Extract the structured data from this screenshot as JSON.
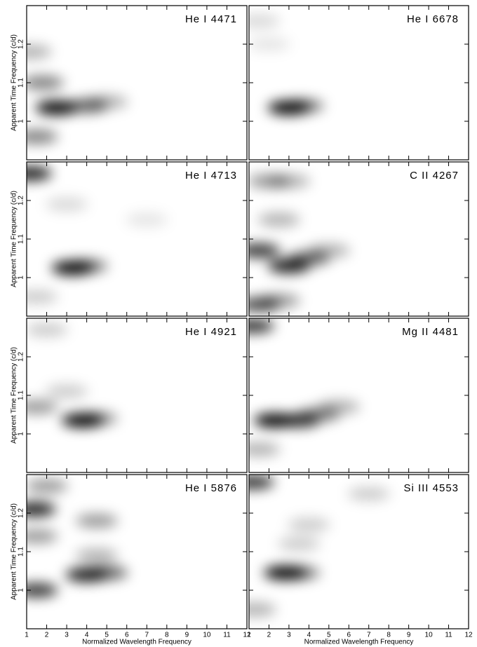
{
  "chart_data": [
    {
      "type": "heatmap",
      "title": "He I 4471",
      "ylabel": "Apparent Time Frequency (c/d)",
      "xlim": [
        1,
        12
      ],
      "ylim": [
        0.9,
        1.3
      ],
      "xticks": [
        1,
        2,
        3,
        4,
        5,
        6,
        7,
        8,
        9,
        10,
        11,
        12
      ],
      "yticks": [
        1,
        1.1,
        1.2
      ],
      "peaks": [
        {
          "x": 1.2,
          "y": 1.18,
          "value": 0.3
        },
        {
          "x": 1.8,
          "y": 1.1,
          "value": 0.5
        },
        {
          "x": 2.5,
          "y": 1.035,
          "value": 1
        },
        {
          "x": 4,
          "y": 1.04,
          "value": 0.6
        },
        {
          "x": 5,
          "y": 1.05,
          "value": 0.3
        },
        {
          "x": 1.5,
          "y": 0.96,
          "value": 0.5
        }
      ]
    },
    {
      "type": "heatmap",
      "title": "He I 6678",
      "xlim": [
        1,
        12
      ],
      "ylim": [
        0.9,
        1.3
      ],
      "xticks": [
        1,
        2,
        3,
        4,
        5,
        6,
        7,
        8,
        9,
        10,
        11,
        12
      ],
      "yticks": [
        1,
        1.1,
        1.2
      ],
      "peaks": [
        {
          "x": 3,
          "y": 1.035,
          "value": 1
        },
        {
          "x": 3.7,
          "y": 1.04,
          "value": 0.5
        },
        {
          "x": 1.5,
          "y": 1.26,
          "value": 0.15
        },
        {
          "x": 2,
          "y": 1.2,
          "value": 0.1
        }
      ]
    },
    {
      "type": "heatmap",
      "title": "He I 4713",
      "ylabel": "Apparent Time Frequency (c/d)",
      "xlim": [
        1,
        12
      ],
      "ylim": [
        0.9,
        1.3
      ],
      "xticks": [
        1,
        2,
        3,
        4,
        5,
        6,
        7,
        8,
        9,
        10,
        11,
        12
      ],
      "yticks": [
        1,
        1.1,
        1.2
      ],
      "peaks": [
        {
          "x": 1.2,
          "y": 1.27,
          "value": 0.9
        },
        {
          "x": 3.3,
          "y": 1.025,
          "value": 1
        },
        {
          "x": 4,
          "y": 1.03,
          "value": 0.5
        },
        {
          "x": 3,
          "y": 1.19,
          "value": 0.15
        },
        {
          "x": 7,
          "y": 1.15,
          "value": 0.1
        },
        {
          "x": 1.5,
          "y": 0.95,
          "value": 0.2
        }
      ]
    },
    {
      "type": "heatmap",
      "title": "C II 4267",
      "xlim": [
        1,
        12
      ],
      "ylim": [
        0.9,
        1.3
      ],
      "xticks": [
        1,
        2,
        3,
        4,
        5,
        6,
        7,
        8,
        9,
        10,
        11,
        12
      ],
      "yticks": [
        1,
        1.1,
        1.2
      ],
      "peaks": [
        {
          "x": 1.5,
          "y": 1.07,
          "value": 0.8
        },
        {
          "x": 3,
          "y": 1.03,
          "value": 0.9
        },
        {
          "x": 4,
          "y": 1.05,
          "value": 0.6
        },
        {
          "x": 5,
          "y": 1.07,
          "value": 0.3
        },
        {
          "x": 2,
          "y": 1.25,
          "value": 0.4
        },
        {
          "x": 3,
          "y": 1.25,
          "value": 0.3
        },
        {
          "x": 2.5,
          "y": 1.15,
          "value": 0.3
        },
        {
          "x": 1.5,
          "y": 0.93,
          "value": 0.7
        },
        {
          "x": 2.5,
          "y": 0.94,
          "value": 0.4
        }
      ]
    },
    {
      "type": "heatmap",
      "title": "He I 4921",
      "ylabel": "Apparent Time Frequency (c/d)",
      "xlim": [
        1,
        12
      ],
      "ylim": [
        0.9,
        1.3
      ],
      "xticks": [
        1,
        2,
        3,
        4,
        5,
        6,
        7,
        8,
        9,
        10,
        11,
        12
      ],
      "yticks": [
        1,
        1.1,
        1.2
      ],
      "peaks": [
        {
          "x": 3.8,
          "y": 1.035,
          "value": 1
        },
        {
          "x": 4.5,
          "y": 1.04,
          "value": 0.4
        },
        {
          "x": 2,
          "y": 1.27,
          "value": 0.2
        },
        {
          "x": 3,
          "y": 1.11,
          "value": 0.2
        },
        {
          "x": 1.5,
          "y": 1.07,
          "value": 0.4
        }
      ]
    },
    {
      "type": "heatmap",
      "title": "Mg II 4481",
      "xlim": [
        1,
        12
      ],
      "ylim": [
        0.9,
        1.3
      ],
      "xticks": [
        1,
        2,
        3,
        4,
        5,
        6,
        7,
        8,
        9,
        10,
        11,
        12
      ],
      "yticks": [
        1,
        1.1,
        1.2
      ],
      "peaks": [
        {
          "x": 2.3,
          "y": 1.035,
          "value": 1
        },
        {
          "x": 3.5,
          "y": 1.035,
          "value": 0.8
        },
        {
          "x": 4.5,
          "y": 1.05,
          "value": 0.5
        },
        {
          "x": 5.5,
          "y": 1.07,
          "value": 0.3
        },
        {
          "x": 1.2,
          "y": 1.28,
          "value": 0.8
        },
        {
          "x": 1.5,
          "y": 0.96,
          "value": 0.3
        }
      ]
    },
    {
      "type": "heatmap",
      "title": "He I 5876",
      "ylabel": "Apparent Time Frequency (c/d)",
      "xlabel": "Normalized Wavelength Frequency",
      "xlim": [
        1,
        12
      ],
      "ylim": [
        0.9,
        1.3
      ],
      "xticks": [
        1,
        2,
        3,
        4,
        5,
        6,
        7,
        8,
        9,
        10,
        11,
        12
      ],
      "yticks": [
        1,
        1.1,
        1.2
      ],
      "peaks": [
        {
          "x": 1.4,
          "y": 1.21,
          "value": 0.9
        },
        {
          "x": 4,
          "y": 1.04,
          "value": 0.9
        },
        {
          "x": 5,
          "y": 1.045,
          "value": 0.6
        },
        {
          "x": 4.5,
          "y": 1.18,
          "value": 0.4
        },
        {
          "x": 4.5,
          "y": 1.09,
          "value": 0.3
        },
        {
          "x": 1.5,
          "y": 1,
          "value": 0.8
        },
        {
          "x": 1.5,
          "y": 1.14,
          "value": 0.4
        },
        {
          "x": 2,
          "y": 1.27,
          "value": 0.4
        }
      ]
    },
    {
      "type": "heatmap",
      "title": "Si III 4553",
      "xlabel": "Normalized Wavelength Frequency",
      "xlim": [
        1,
        12
      ],
      "ylim": [
        0.9,
        1.3
      ],
      "xticks": [
        1,
        2,
        3,
        4,
        5,
        6,
        7,
        8,
        9,
        10,
        11,
        12
      ],
      "yticks": [
        1,
        1.1,
        1.2
      ],
      "peaks": [
        {
          "x": 2.8,
          "y": 1.045,
          "value": 1
        },
        {
          "x": 3.5,
          "y": 1.045,
          "value": 0.5
        },
        {
          "x": 1.2,
          "y": 1.28,
          "value": 0.8
        },
        {
          "x": 3.5,
          "y": 1.12,
          "value": 0.2
        },
        {
          "x": 4,
          "y": 1.17,
          "value": 0.2
        },
        {
          "x": 7,
          "y": 1.25,
          "value": 0.2
        },
        {
          "x": 1.3,
          "y": 0.95,
          "value": 0.3
        }
      ]
    }
  ]
}
